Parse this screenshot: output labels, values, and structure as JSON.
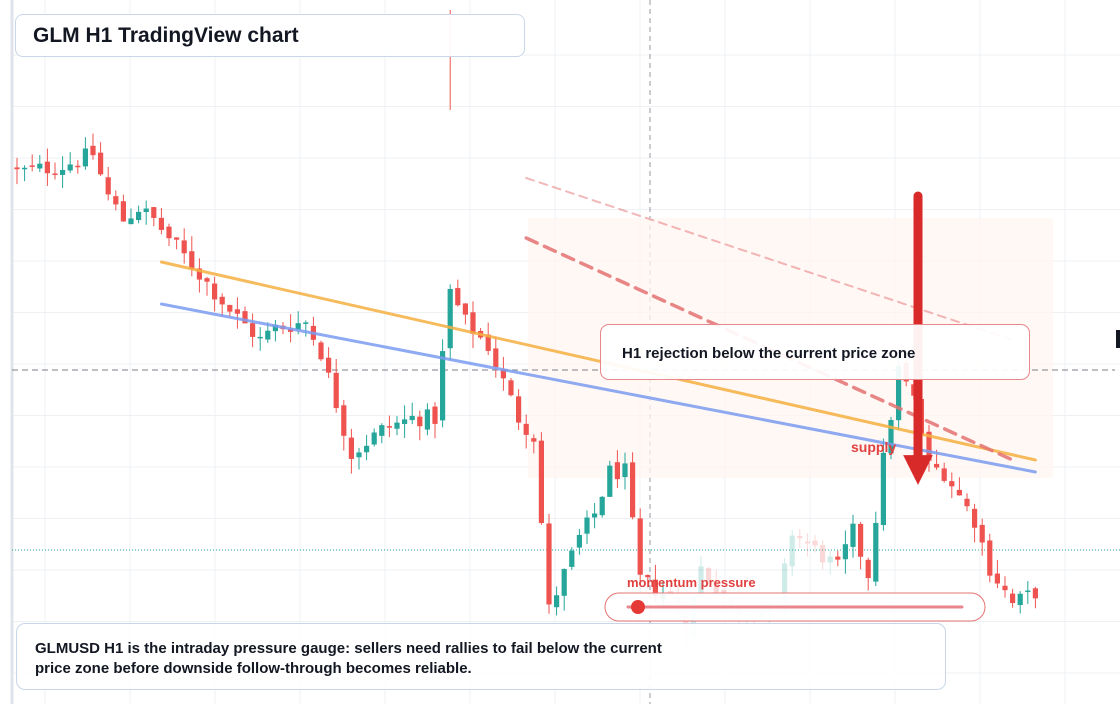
{
  "header": {
    "title": "GLM H1 TradingView chart"
  },
  "annotations": {
    "rejection_note": "H1 rejection below the current price zone",
    "supply_label": "supply",
    "momentum_label": "momentum pressure",
    "momentum_level": 0.03
  },
  "caption": {
    "text": "GLMUSD H1 is the intraday pressure gauge: sellers need rallies to fail below the current price zone before downside follow-through becomes reliable."
  },
  "colors": {
    "up": "#26a69a",
    "down": "#ef5350",
    "resistance": "#f5b041",
    "trend": "#7b9cf0",
    "arrow": "#d92a2a",
    "channel": "#e57373"
  },
  "icons": {
    "arrow": "down-arrow-icon"
  },
  "chart_data": {
    "type": "candlestick",
    "title": "GLM H1 TradingView chart",
    "xlabel": "",
    "ylabel": "",
    "ylim": [
      0,
      100
    ],
    "grid": true,
    "series": [
      {
        "name": "",
        "waypoints": [
          [
            0,
            88
          ],
          [
            6,
            89
          ],
          [
            10,
            91
          ],
          [
            12,
            84
          ],
          [
            14,
            80
          ],
          [
            16,
            82
          ],
          [
            18,
            80
          ],
          [
            20,
            77
          ],
          [
            24,
            71
          ],
          [
            28,
            65
          ],
          [
            32,
            60
          ],
          [
            34,
            62
          ],
          [
            38,
            63
          ],
          [
            40,
            58
          ],
          [
            44,
            41
          ],
          [
            48,
            45
          ],
          [
            52,
            47
          ],
          [
            55,
            47
          ],
          [
            57,
            68
          ],
          [
            59,
            63
          ],
          [
            62,
            59
          ],
          [
            66,
            47
          ],
          [
            68,
            44
          ],
          [
            70,
            15
          ],
          [
            74,
            27
          ],
          [
            76,
            31
          ],
          [
            78,
            38
          ],
          [
            80,
            38
          ],
          [
            82,
            20
          ],
          [
            86,
            17
          ],
          [
            88,
            12
          ],
          [
            90,
            22
          ],
          [
            92,
            19
          ],
          [
            94,
            15
          ],
          [
            100,
            15
          ],
          [
            102,
            28
          ],
          [
            106,
            24
          ],
          [
            108,
            22
          ],
          [
            110,
            28
          ],
          [
            112,
            21
          ],
          [
            114,
            40
          ],
          [
            116,
            55
          ],
          [
            118,
            50
          ],
          [
            120,
            39
          ],
          [
            122,
            38
          ],
          [
            126,
            30
          ],
          [
            128,
            22
          ],
          [
            131,
            16
          ],
          [
            134,
            18
          ]
        ]
      }
    ],
    "horizontal_levels": [
      {
        "name": "current price",
        "value": 55
      },
      {
        "name": "",
        "value": 25
      }
    ],
    "lines": [
      {
        "name": "resistance",
        "x": [
          19,
          134
        ],
        "y": [
          73,
          40
        ]
      },
      {
        "name": "trend",
        "x": [
          19,
          134
        ],
        "y": [
          66,
          38
        ]
      },
      {
        "name": "channel-upper",
        "x": [
          67,
          131
        ],
        "y": [
          87,
          60
        ]
      },
      {
        "name": "channel-lower",
        "x": [
          67,
          131
        ],
        "y": [
          77,
          40
        ]
      }
    ],
    "annotations": [
      {
        "text": "H1 rejection below the current price zone"
      },
      {
        "text": "supply"
      },
      {
        "text": "momentum pressure"
      }
    ]
  }
}
